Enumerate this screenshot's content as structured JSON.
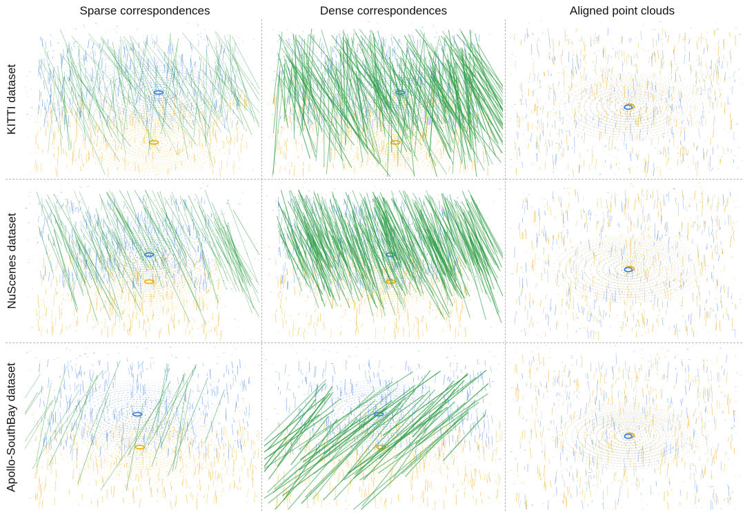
{
  "columns": [
    "Sparse correspondences",
    "Dense correspondences",
    "Aligned point clouds"
  ],
  "rows": [
    "KITTI dataset",
    "NuScenes dataset",
    "Apollo-SouthBay dataset"
  ],
  "colors": {
    "source_cloud": "#4a86e8",
    "target_cloud": "#f2b51f",
    "correspondence": "#2f9e44",
    "separator": "#b4b4b4"
  },
  "panel_types": [
    "sparse",
    "dense",
    "aligned"
  ]
}
